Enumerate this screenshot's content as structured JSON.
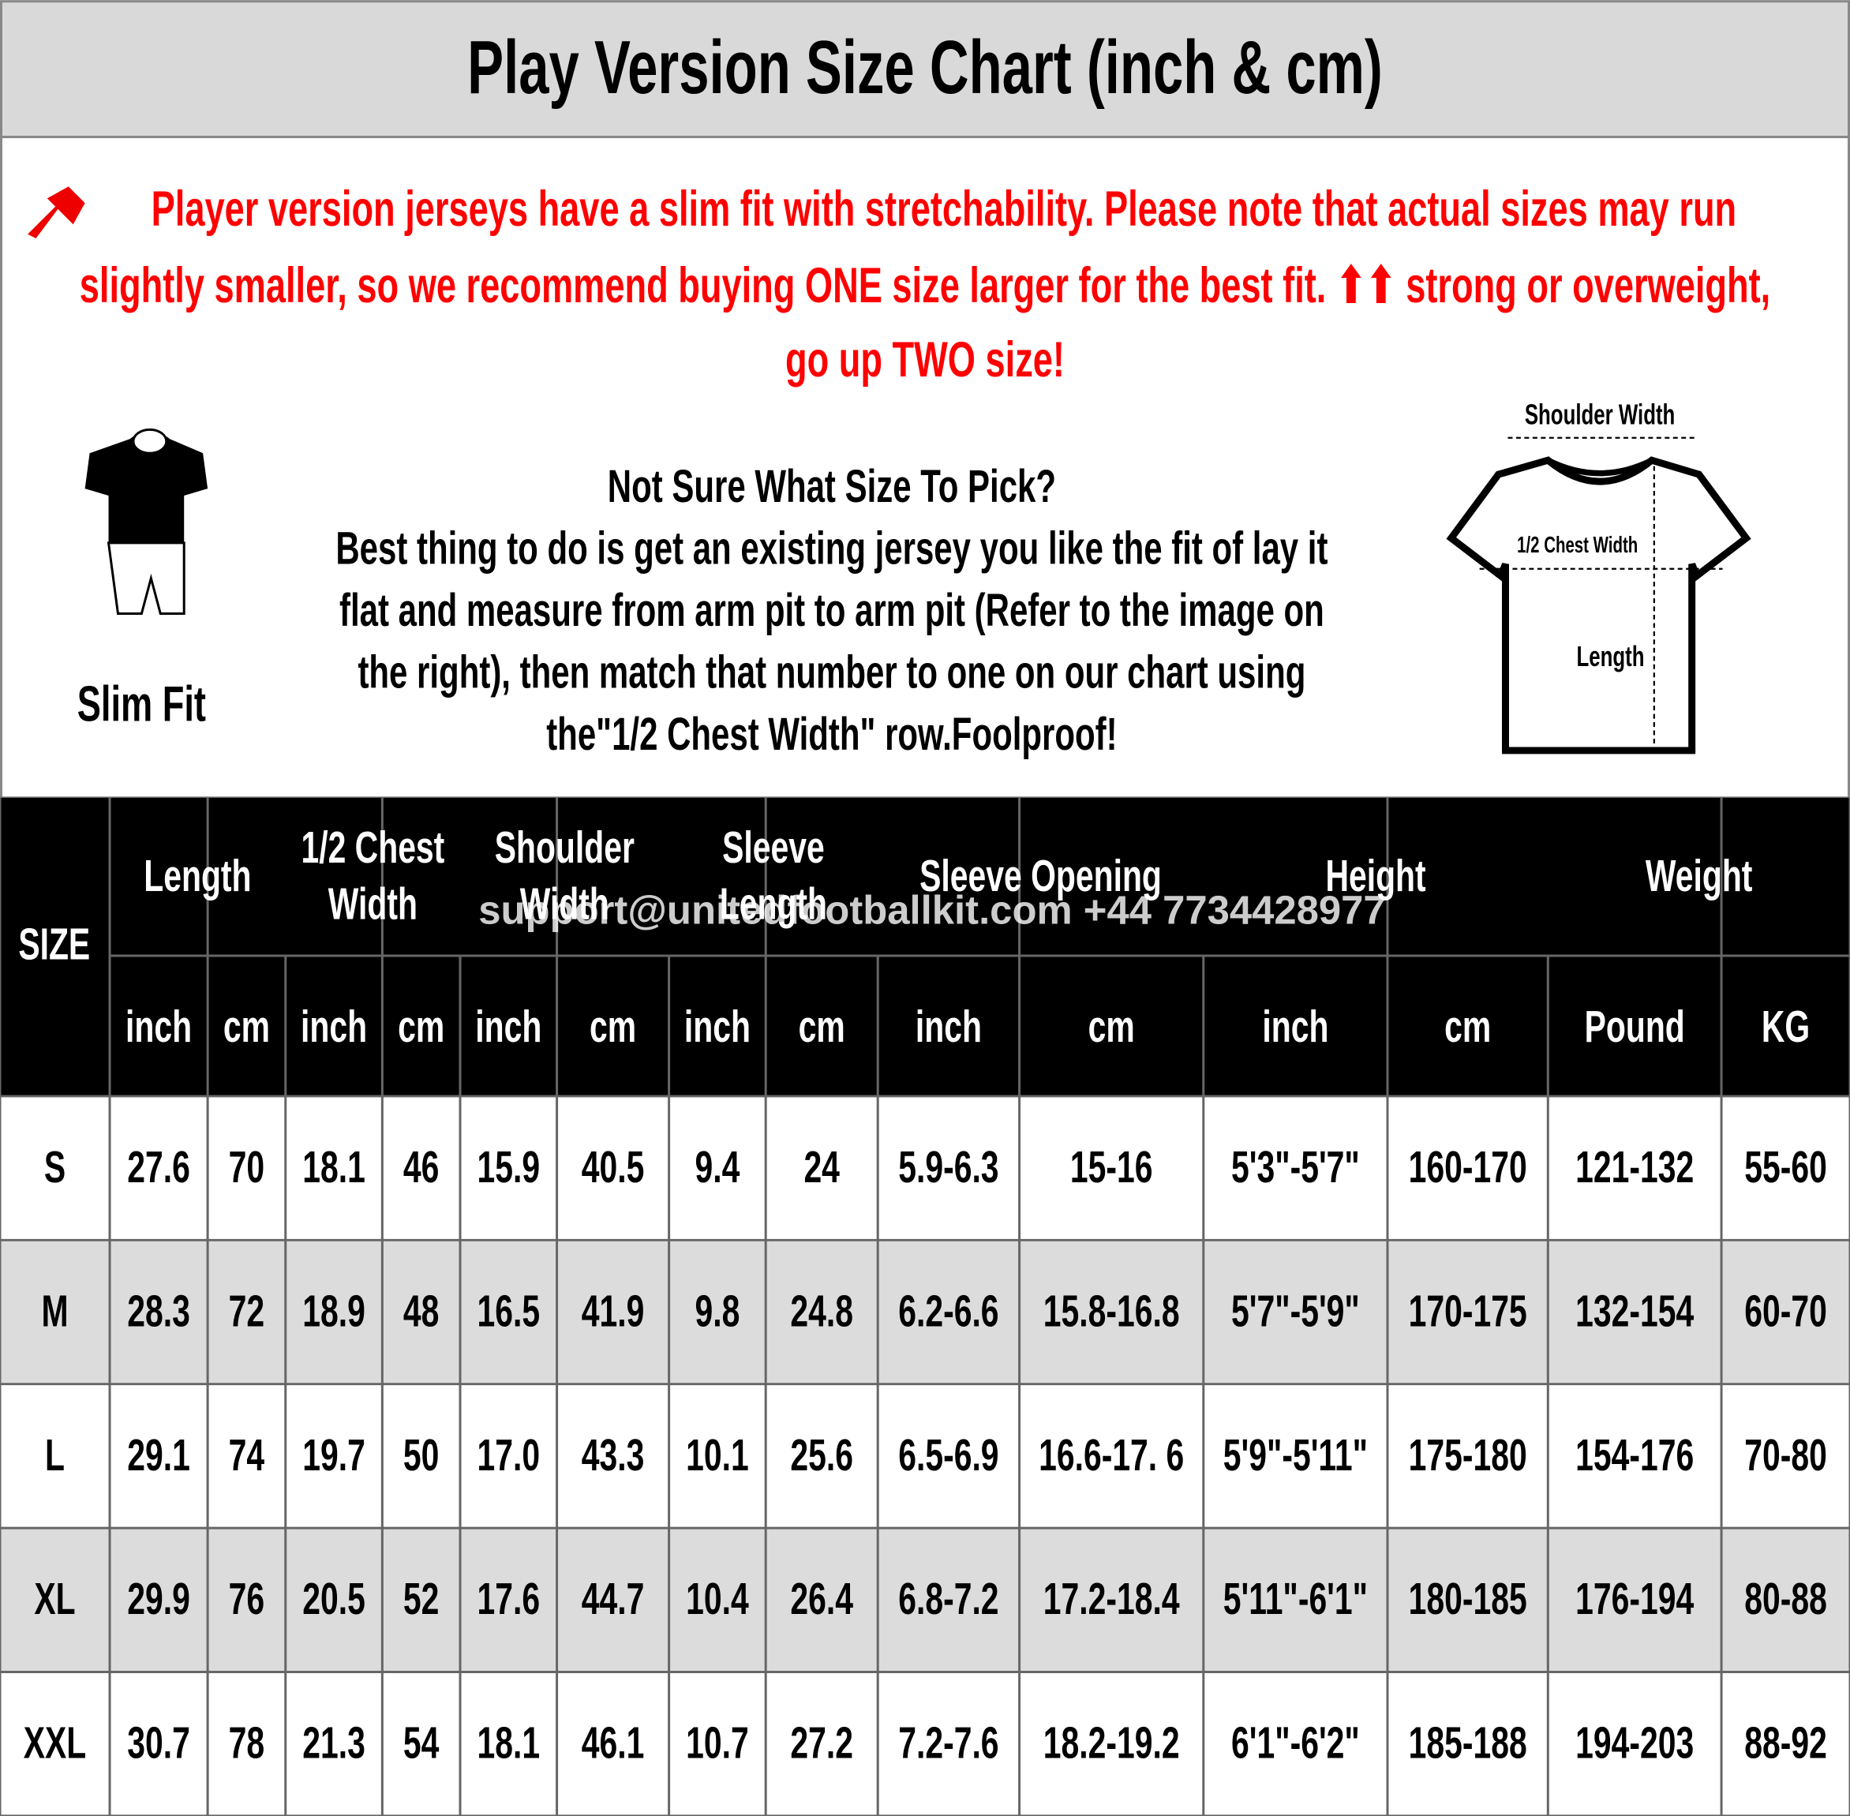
{
  "header": {
    "title": "Play Version Size Chart (inch & cm)"
  },
  "notice": {
    "lines": [
      "Player version jerseys have a slim fit with stretchability. Please note that actual sizes may run",
      "slightly smaller, so we recommend buying ONE size larger for the best fit. ⬆⬆ strong or overweight,",
      "go up TWO size!"
    ]
  },
  "fit": {
    "label": "Slim Fit"
  },
  "guide": {
    "lines": [
      "Not Sure What Size To Pick?",
      "Best thing to do is get an existing jersey you like the fit of lay it",
      "flat and measure from arm pit to arm pit (Refer to the image on",
      "the right), then match that number to one on our chart using",
      "the\"1/2 Chest Width\" row.Foolproof!"
    ]
  },
  "diagram": {
    "shoulder": "Shoulder Width",
    "chest": "1/2 Chest Width",
    "length": "Length"
  },
  "watermark": "support@unitedfootballkit.com  +44 7734428977",
  "table": {
    "size_header": "SIZE",
    "groups": [
      {
        "lines": [
          "Length"
        ]
      },
      {
        "lines": [
          "1/2 Chest",
          "Width"
        ]
      },
      {
        "lines": [
          "Shoulder",
          "Width"
        ]
      },
      {
        "lines": [
          "Sleeve",
          "Length"
        ]
      },
      {
        "lines": [
          "Sleeve Opening"
        ]
      },
      {
        "lines": [
          "Height"
        ]
      },
      {
        "lines": [
          "Weight"
        ]
      }
    ],
    "units": [
      "inch",
      "cm",
      "inch",
      "cm",
      "inch",
      "cm",
      "inch",
      "cm",
      "inch",
      "cm",
      "inch",
      "cm",
      "Pound",
      "KG"
    ],
    "rows": [
      [
        "S",
        "27.6",
        "70",
        "18.1",
        "46",
        "15.9",
        "40.5",
        "9.4",
        "24",
        "5.9-6.3",
        "15-16",
        "5'3\"-5'7\"",
        "160-170",
        "121-132",
        "55-60"
      ],
      [
        "M",
        "28.3",
        "72",
        "18.9",
        "48",
        "16.5",
        "41.9",
        "9.8",
        "24.8",
        "6.2-6.6",
        "15.8-16.8",
        "5'7\"-5'9\"",
        "170-175",
        "132-154",
        "60-70"
      ],
      [
        "L",
        "29.1",
        "74",
        "19.7",
        "50",
        "17.0",
        "43.3",
        "10.1",
        "25.6",
        "6.5-6.9",
        "16.6-17. 6",
        "5'9\"-5'11\"",
        "175-180",
        "154-176",
        "70-80"
      ],
      [
        "XL",
        "29.9",
        "76",
        "20.5",
        "52",
        "17.6",
        "44.7",
        "10.4",
        "26.4",
        "6.8-7.2",
        "17.2-18.4",
        "5'11\"-6'1\"",
        "180-185",
        "176-194",
        "80-88"
      ],
      [
        "XXL",
        "30.7",
        "78",
        "21.3",
        "54",
        "18.1",
        "46.1",
        "10.7",
        "27.2",
        "7.2-7.6",
        "18.2-19.2",
        "6'1\"-6'2\"",
        "185-188",
        "194-203",
        "88-92"
      ]
    ]
  }
}
